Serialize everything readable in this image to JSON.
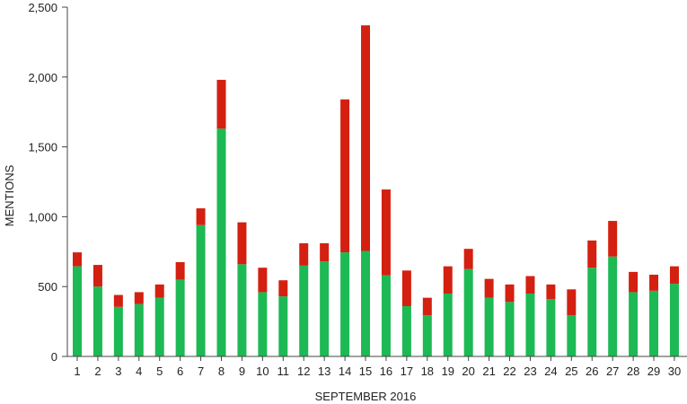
{
  "chart_data": {
    "type": "bar",
    "stacked": true,
    "title": "",
    "xlabel": "SEPTEMBER 2016",
    "ylabel": "MENTIONS",
    "ylim": [
      0,
      2500
    ],
    "yticks": [
      0,
      500,
      1000,
      1500,
      2000,
      2500
    ],
    "ytick_labels": [
      "0",
      "500",
      "1,000",
      "1,500",
      "2,000",
      "2,500"
    ],
    "grid": false,
    "legend": "none",
    "categories": [
      "1",
      "2",
      "3",
      "4",
      "5",
      "6",
      "7",
      "8",
      "9",
      "10",
      "11",
      "12",
      "13",
      "14",
      "15",
      "16",
      "17",
      "18",
      "19",
      "20",
      "21",
      "22",
      "23",
      "24",
      "25",
      "26",
      "27",
      "28",
      "29",
      "30"
    ],
    "series": [
      {
        "color": "#1db954",
        "values": [
          645,
          500,
          355,
          375,
          420,
          550,
          940,
          1630,
          660,
          460,
          430,
          650,
          680,
          745,
          755,
          580,
          360,
          295,
          450,
          625,
          420,
          390,
          450,
          410,
          295,
          635,
          715,
          460,
          470,
          520
        ]
      },
      {
        "color": "#d42010",
        "values": [
          100,
          155,
          85,
          85,
          95,
          125,
          120,
          350,
          300,
          175,
          115,
          160,
          130,
          1095,
          1615,
          615,
          255,
          125,
          195,
          145,
          135,
          125,
          125,
          105,
          185,
          195,
          255,
          145,
          115,
          125
        ]
      }
    ]
  }
}
